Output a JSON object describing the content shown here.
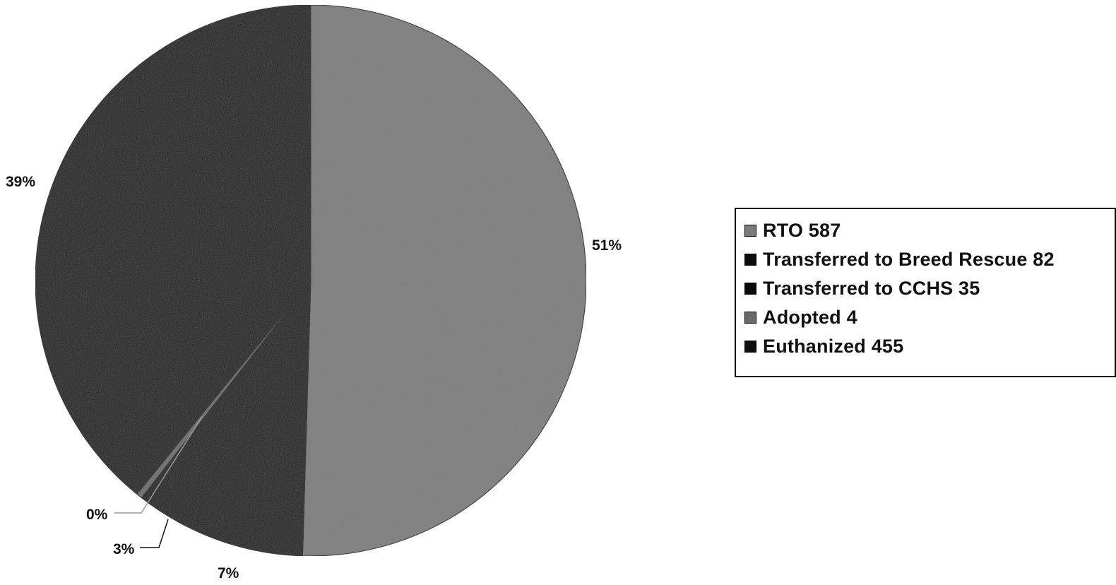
{
  "chart_data": {
    "type": "pie",
    "slices": [
      {
        "label": "RTO 587",
        "value": 587,
        "percent_label": "51%",
        "color": "#7b7b7b"
      },
      {
        "label": "Transferred to Breed Rescue 82",
        "value": 82,
        "percent_label": "7%",
        "color": "#0c0c0c"
      },
      {
        "label": "Transferred to CCHS 35",
        "value": 35,
        "percent_label": "3%",
        "color": "#0a0a0a"
      },
      {
        "label": "Adopted 4",
        "value": 4,
        "percent_label": "0%",
        "color": "#6a6a6a"
      },
      {
        "label": "Euthanized 455",
        "value": 455,
        "percent_label": "39%",
        "color": "#0e0e0e"
      }
    ],
    "start_angle_deg": 0,
    "direction": "clockwise",
    "legend_position": "right"
  }
}
